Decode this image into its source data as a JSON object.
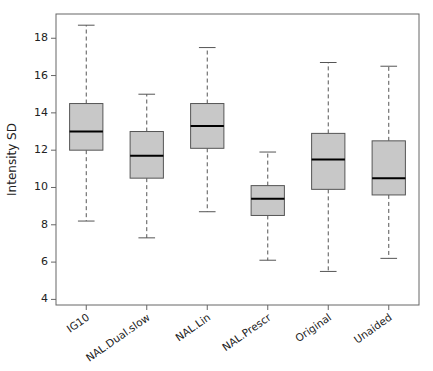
{
  "chart_data": {
    "type": "box",
    "categories": [
      "IG10",
      "NAL.Dual.slow",
      "NAL.Lin",
      "NAL.Prescr",
      "Original",
      "Unaided"
    ],
    "boxes": [
      {
        "whislo": 8.2,
        "q1": 12.0,
        "med": 13.0,
        "q3": 14.5,
        "whishi": 18.7
      },
      {
        "whislo": 7.3,
        "q1": 10.5,
        "med": 11.7,
        "q3": 13.0,
        "whishi": 15.0
      },
      {
        "whislo": 8.7,
        "q1": 12.1,
        "med": 13.3,
        "q3": 14.5,
        "whishi": 17.5
      },
      {
        "whislo": 6.1,
        "q1": 8.5,
        "med": 9.4,
        "q3": 10.1,
        "whishi": 11.9
      },
      {
        "whislo": 5.5,
        "q1": 9.9,
        "med": 11.5,
        "q3": 12.9,
        "whishi": 16.7
      },
      {
        "whislo": 6.2,
        "q1": 9.6,
        "med": 10.5,
        "q3": 12.5,
        "whishi": 16.5
      }
    ],
    "ylim": [
      3.7,
      19.3
    ],
    "yticks": [
      4,
      6,
      8,
      10,
      12,
      14,
      16,
      18
    ],
    "ylabel": "Intensity SD",
    "color": "#c8c8c8",
    "grid": false
  }
}
